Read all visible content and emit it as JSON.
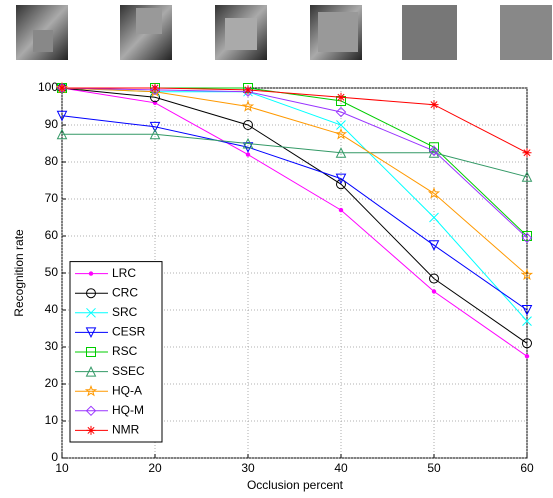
{
  "chart_data": {
    "type": "line",
    "xlabel": "Occlusion percent",
    "ylabel": "Recognition rate",
    "x": [
      10,
      20,
      30,
      40,
      50,
      60
    ],
    "xlim": [
      10,
      60
    ],
    "xticks": [
      10,
      20,
      30,
      40,
      50,
      60
    ],
    "ylim": [
      0,
      100
    ],
    "yticks": [
      0,
      10,
      20,
      30,
      40,
      50,
      60,
      70,
      80,
      90,
      100
    ],
    "grid": true,
    "legend": "lower left",
    "series": [
      {
        "name": "LRC",
        "color": "#ff00ff",
        "marker": "point",
        "values": [
          100,
          96,
          82,
          67,
          45,
          27.5
        ]
      },
      {
        "name": "CRC",
        "color": "#000000",
        "marker": "circle",
        "values": [
          100,
          97.5,
          90,
          74,
          48.5,
          31
        ]
      },
      {
        "name": "SRC",
        "color": "#00ffff",
        "marker": "x",
        "values": [
          100,
          99,
          99,
          90,
          65,
          37
        ]
      },
      {
        "name": "CESR",
        "color": "#0000ff",
        "marker": "triangle-down",
        "values": [
          92.5,
          89.5,
          84,
          75.5,
          57.5,
          40
        ]
      },
      {
        "name": "RSC",
        "color": "#00cc00",
        "marker": "square",
        "values": [
          100,
          100,
          100,
          96.5,
          84,
          60
        ]
      },
      {
        "name": "SSEC",
        "color": "#339966",
        "marker": "triangle-up",
        "values": [
          87.5,
          87.5,
          85,
          82.5,
          82.5,
          76
        ]
      },
      {
        "name": "HQ-A",
        "color": "#ff9900",
        "marker": "star",
        "values": [
          100,
          99,
          95,
          87.5,
          71.5,
          49.5
        ]
      },
      {
        "name": "HQ-M",
        "color": "#9933ff",
        "marker": "diamond",
        "values": [
          100,
          99.5,
          99,
          93.5,
          83,
          59.5
        ]
      },
      {
        "name": "NMR",
        "color": "#ff0000",
        "marker": "asterisk",
        "values": [
          100,
          100,
          99.5,
          97.5,
          95.5,
          82.5
        ]
      }
    ]
  }
}
